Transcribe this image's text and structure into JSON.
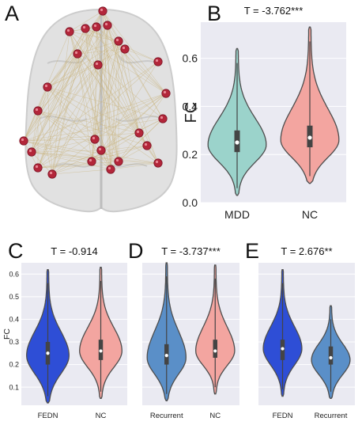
{
  "panels": {
    "A": {
      "letter": "A"
    }
  },
  "colors": {
    "plot_bg": "#eaeaf2",
    "grid": "#ffffff",
    "teal": "#9bd3cb",
    "salmon": "#f3a5a0",
    "royal_blue": "#2e4ed6",
    "steel_blue": "#5a8fc8",
    "node_red": "#b3263a",
    "edge_tan": "#c8b27a",
    "brain_gray": "#d9d9d9"
  },
  "chart_data": [
    {
      "panel": "B",
      "type": "violin",
      "title": "T = -3.762***",
      "xlabel": "",
      "ylabel": "FC",
      "ylim": [
        0.0,
        0.75
      ],
      "yticks": [
        "0.0",
        "0.2",
        "0.4",
        "0.6"
      ],
      "categories": [
        "MDD",
        "NC"
      ],
      "series": [
        {
          "values": {
            "min": 0.03,
            "q1": 0.21,
            "median": 0.25,
            "q3": 0.3,
            "max": 0.64,
            "mode": 0.24
          },
          "color": "teal"
        },
        {
          "values": {
            "min": 0.08,
            "q1": 0.23,
            "median": 0.27,
            "q3": 0.32,
            "max": 0.73,
            "mode": 0.26
          },
          "color": "salmon"
        }
      ]
    },
    {
      "panel": "C",
      "type": "violin",
      "title": "T = -0.914",
      "xlabel": "",
      "ylabel": "FC",
      "ylim": [
        0.02,
        0.65
      ],
      "yticks": [
        "0.1",
        "0.2",
        "0.3",
        "0.4",
        "0.5",
        "0.6"
      ],
      "categories": [
        "FEDN",
        "NC"
      ],
      "series": [
        {
          "values": {
            "min": 0.03,
            "q1": 0.2,
            "median": 0.25,
            "q3": 0.3,
            "max": 0.62,
            "mode": 0.24
          },
          "color": "royal_blue"
        },
        {
          "values": {
            "min": 0.05,
            "q1": 0.22,
            "median": 0.26,
            "q3": 0.31,
            "max": 0.63,
            "mode": 0.26
          },
          "color": "salmon"
        }
      ]
    },
    {
      "panel": "D",
      "type": "violin",
      "title": "T = -3.737***",
      "xlabel": "",
      "ylabel": "",
      "ylim": [
        0.02,
        0.65
      ],
      "yticks": [],
      "categories": [
        "Recurrent",
        "NC"
      ],
      "series": [
        {
          "values": {
            "min": 0.04,
            "q1": 0.2,
            "median": 0.24,
            "q3": 0.29,
            "max": 0.65,
            "mode": 0.23
          },
          "color": "steel_blue"
        },
        {
          "values": {
            "min": 0.07,
            "q1": 0.23,
            "median": 0.26,
            "q3": 0.31,
            "max": 0.64,
            "mode": 0.26
          },
          "color": "salmon"
        }
      ]
    },
    {
      "panel": "E",
      "type": "violin",
      "title": "T = 2.676**",
      "xlabel": "",
      "ylabel": "",
      "ylim": [
        0.02,
        0.65
      ],
      "yticks": [],
      "categories": [
        "FEDN",
        "Recurrent"
      ],
      "series": [
        {
          "values": {
            "min": 0.06,
            "q1": 0.22,
            "median": 0.27,
            "q3": 0.31,
            "max": 0.62,
            "mode": 0.27
          },
          "color": "royal_blue"
        },
        {
          "values": {
            "min": 0.05,
            "q1": 0.2,
            "median": 0.23,
            "q3": 0.28,
            "max": 0.46,
            "mode": 0.22
          },
          "color": "steel_blue"
        }
      ]
    }
  ]
}
